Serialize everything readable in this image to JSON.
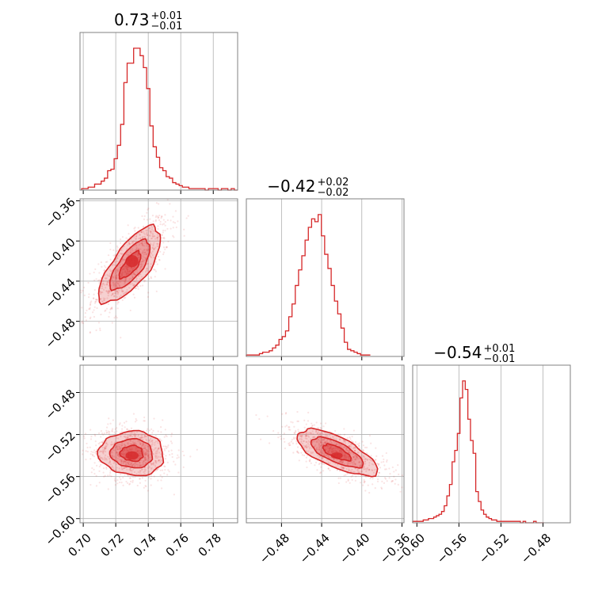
{
  "chart_data": {
    "type": "corner",
    "color": "#d62728",
    "grid": true,
    "parameters": [
      {
        "range": [
          0.698,
          0.795
        ],
        "ticks": [
          0.7,
          0.72,
          0.74,
          0.76,
          0.78
        ],
        "tick_labels": [
          "0.70",
          "0.72",
          "0.74",
          "0.76",
          "0.78"
        ],
        "title": {
          "median": "0.73",
          "plus": "+0.01",
          "minus": "−0.01"
        },
        "histogram": {
          "start": 0.699,
          "step": 0.002,
          "values": [
            1,
            1,
            2,
            2,
            4,
            4,
            6,
            8,
            13,
            14,
            21,
            30,
            44,
            72,
            85,
            85,
            95,
            95,
            90,
            82,
            68,
            43,
            29,
            22,
            15,
            13,
            9,
            8,
            5,
            4,
            3,
            2,
            2,
            1,
            1,
            1,
            1,
            1,
            0,
            1,
            1,
            1,
            0,
            1,
            1,
            0,
            1,
            0
          ]
        }
      },
      {
        "range": [
          -0.515,
          -0.358
        ],
        "ticks": [
          -0.48,
          -0.44,
          -0.4,
          -0.36
        ],
        "tick_labels": [
          "−0.48",
          "−0.44",
          "−0.40",
          "−0.36"
        ],
        "title": {
          "median": "−0.42",
          "plus": "+0.02",
          "minus": "−0.02"
        },
        "histogram": {
          "start": -0.515,
          "step": 0.00325,
          "values": [
            1,
            1,
            1,
            1,
            2,
            3,
            3,
            4,
            6,
            8,
            12,
            14,
            18,
            28,
            37,
            50,
            61,
            71,
            82,
            91,
            97,
            95,
            100,
            85,
            72,
            62,
            50,
            39,
            30,
            20,
            10,
            5,
            4,
            3,
            2,
            1,
            1,
            1
          ]
        }
      },
      {
        "range": [
          -0.604,
          -0.454
        ],
        "ticks": [
          -0.6,
          -0.56,
          -0.52,
          -0.48
        ],
        "tick_labels": [
          "−0.60",
          "−0.56",
          "−0.52",
          "−0.48"
        ],
        "title": {
          "median": "−0.54",
          "plus": "+0.01",
          "minus": "−0.01"
        },
        "histogram": {
          "start": -0.604,
          "step": 0.0025,
          "values": [
            1,
            1,
            1,
            1,
            2,
            2,
            3,
            3,
            4,
            5,
            6,
            8,
            12,
            19,
            27,
            43,
            51,
            63,
            88,
            100,
            94,
            73,
            58,
            49,
            22,
            15,
            9,
            6,
            4,
            3,
            2,
            2,
            1,
            1,
            1,
            1,
            1,
            1,
            1,
            1,
            1,
            0,
            1,
            0,
            0,
            0,
            1,
            0,
            0,
            0
          ]
        }
      }
    ],
    "pairs": [
      {
        "x_param": 0,
        "y_param": 1,
        "center": [
          0.729,
          -0.424
        ],
        "sigma": [
          0.0095,
          0.019
        ],
        "rho": 0.72,
        "inner_blob": [
          0.73,
          -0.42,
          0.004,
          0.006
        ]
      },
      {
        "x_param": 0,
        "y_param": 2,
        "center": [
          0.73,
          -0.538
        ],
        "sigma": [
          0.01,
          0.0105
        ],
        "rho": -0.05,
        "inner_blob": [
          0.73,
          -0.54,
          0.004,
          0.004
        ]
      },
      {
        "x_param": 1,
        "y_param": 2,
        "center": [
          -0.425,
          -0.537
        ],
        "sigma": [
          0.02,
          0.011
        ],
        "rho": -0.7,
        "inner_blob": [
          -0.425,
          -0.54,
          0.006,
          0.003
        ]
      }
    ]
  }
}
